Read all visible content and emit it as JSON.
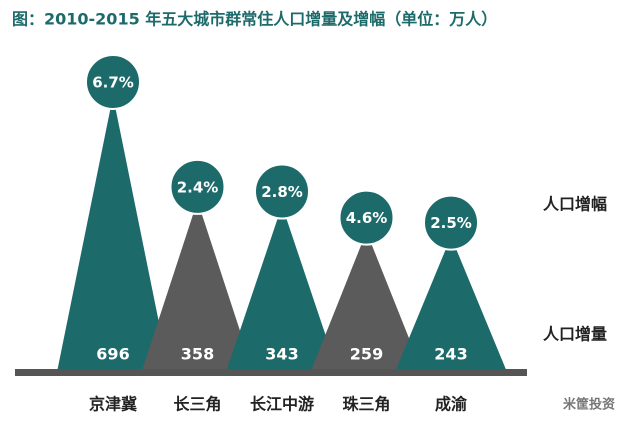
{
  "chart_data": {
    "type": "peak",
    "title": "图：2010-2015 年五大城市群常住人口增量及增幅（单位：万人）",
    "categories": [
      "京津冀",
      "长三角",
      "长江中游",
      "珠三角",
      "成渝"
    ],
    "colors": [
      "#1d6a6b",
      "#5b5b5b",
      "#1d6a6b",
      "#5b5b5b",
      "#1d6a6b"
    ],
    "series": [
      {
        "name": "人口增量",
        "values": [
          696,
          358,
          343,
          259,
          243
        ]
      },
      {
        "name": "人口增幅",
        "values": [
          6.7,
          2.4,
          2.8,
          4.6,
          2.5
        ],
        "value_labels": [
          "6.7%",
          "2.4%",
          "2.8%",
          "4.6%",
          "2.5%"
        ]
      }
    ]
  },
  "watermark": "米筐投资"
}
